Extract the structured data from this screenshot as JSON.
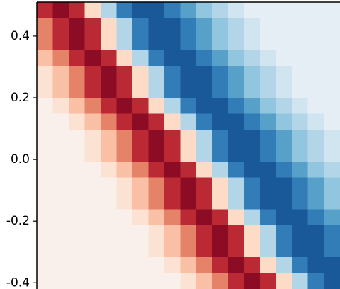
{
  "chart_data": {
    "type": "heatmap",
    "colormap": "RdBu_r",
    "clim": [
      -1,
      1
    ],
    "ylim": [
      -0.42,
      0.51
    ],
    "yticks": [
      0.4,
      0.2,
      {
        "value": 0,
        "label": "0.0"
      },
      -0.2,
      -0.4
    ],
    "z": [
      [
        0.75,
        0.9,
        0.75,
        0.2,
        -0.3,
        -0.7,
        -0.85,
        -0.85,
        -0.7,
        -0.55,
        -0.4,
        -0.3,
        -0.2,
        -0.1,
        -0.1,
        -0.1,
        -0.1,
        -0.1,
        -0.1
      ],
      [
        0.5,
        0.75,
        0.9,
        0.75,
        0.2,
        -0.3,
        -0.7,
        -0.85,
        -0.85,
        -0.7,
        -0.55,
        -0.4,
        -0.3,
        -0.2,
        -0.1,
        -0.1,
        -0.1,
        -0.1,
        -0.1
      ],
      [
        0.5,
        0.75,
        0.9,
        0.75,
        0.2,
        -0.3,
        -0.7,
        -0.85,
        -0.85,
        -0.7,
        -0.55,
        -0.4,
        -0.3,
        -0.2,
        -0.1,
        -0.1,
        -0.1,
        -0.1,
        -0.1
      ],
      [
        0.3,
        0.5,
        0.75,
        0.9,
        0.75,
        0.2,
        -0.3,
        -0.7,
        -0.85,
        -0.85,
        -0.7,
        -0.55,
        -0.4,
        -0.3,
        -0.2,
        -0.1,
        -0.1,
        -0.1,
        -0.1
      ],
      [
        0.15,
        0.3,
        0.5,
        0.75,
        0.9,
        0.75,
        0.2,
        -0.3,
        -0.7,
        -0.85,
        -0.85,
        -0.7,
        -0.55,
        -0.4,
        -0.3,
        -0.2,
        -0.1,
        -0.1,
        -0.1
      ],
      [
        0.15,
        0.3,
        0.5,
        0.75,
        0.9,
        0.75,
        0.2,
        -0.3,
        -0.7,
        -0.85,
        -0.85,
        -0.7,
        -0.55,
        -0.4,
        -0.3,
        -0.2,
        -0.1,
        -0.1,
        -0.1
      ],
      [
        0.05,
        0.15,
        0.3,
        0.5,
        0.75,
        0.9,
        0.75,
        0.2,
        -0.3,
        -0.7,
        -0.85,
        -0.85,
        -0.7,
        -0.55,
        -0.4,
        -0.3,
        -0.2,
        -0.1,
        -0.1
      ],
      [
        0.05,
        0.05,
        0.15,
        0.3,
        0.5,
        0.75,
        0.9,
        0.75,
        0.2,
        -0.3,
        -0.7,
        -0.85,
        -0.85,
        -0.7,
        -0.55,
        -0.4,
        -0.3,
        -0.2,
        -0.1
      ],
      [
        0.05,
        0.05,
        0.05,
        0.15,
        0.3,
        0.5,
        0.75,
        0.9,
        0.75,
        0.2,
        -0.3,
        -0.7,
        -0.85,
        -0.85,
        -0.7,
        -0.55,
        -0.4,
        -0.3,
        -0.2
      ],
      [
        0.05,
        0.05,
        0.05,
        0.15,
        0.3,
        0.5,
        0.75,
        0.9,
        0.75,
        0.2,
        -0.3,
        -0.7,
        -0.85,
        -0.85,
        -0.7,
        -0.55,
        -0.4,
        -0.3,
        -0.2
      ],
      [
        0.05,
        0.05,
        0.05,
        0.05,
        0.15,
        0.3,
        0.5,
        0.75,
        0.9,
        0.75,
        0.2,
        -0.3,
        -0.7,
        -0.85,
        -0.85,
        -0.7,
        -0.55,
        -0.4,
        -0.3
      ],
      [
        0.05,
        0.05,
        0.05,
        0.05,
        0.05,
        0.15,
        0.3,
        0.5,
        0.75,
        0.9,
        0.75,
        0.2,
        -0.3,
        -0.7,
        -0.85,
        -0.85,
        -0.7,
        -0.55,
        -0.4
      ],
      [
        0.05,
        0.05,
        0.05,
        0.05,
        0.05,
        0.15,
        0.3,
        0.5,
        0.75,
        0.9,
        0.75,
        0.2,
        -0.3,
        -0.7,
        -0.85,
        -0.85,
        -0.7,
        -0.55,
        -0.4
      ],
      [
        0.05,
        0.05,
        0.05,
        0.05,
        0.05,
        0.05,
        0.15,
        0.3,
        0.5,
        0.75,
        0.9,
        0.75,
        0.2,
        -0.3,
        -0.7,
        -0.85,
        -0.85,
        -0.7,
        -0.55
      ],
      [
        0.05,
        0.05,
        0.05,
        0.05,
        0.05,
        0.05,
        0.05,
        0.15,
        0.3,
        0.5,
        0.75,
        0.9,
        0.75,
        0.2,
        -0.3,
        -0.7,
        -0.85,
        -0.85,
        -0.7
      ],
      [
        0.05,
        0.05,
        0.05,
        0.05,
        0.05,
        0.05,
        0.05,
        0.15,
        0.3,
        0.5,
        0.75,
        0.9,
        0.75,
        0.2,
        -0.3,
        -0.7,
        -0.85,
        -0.85,
        -0.7
      ],
      [
        0.05,
        0.05,
        0.05,
        0.05,
        0.05,
        0.05,
        0.05,
        0.05,
        0.15,
        0.3,
        0.5,
        0.75,
        0.9,
        0.75,
        0.2,
        -0.3,
        -0.7,
        -0.85,
        -0.85
      ],
      [
        0.05,
        0.05,
        0.05,
        0.05,
        0.05,
        0.05,
        0.05,
        0.05,
        0.05,
        0.15,
        0.3,
        0.5,
        0.75,
        0.9,
        0.75,
        0.2,
        -0.3,
        -0.7,
        -0.85
      ]
    ]
  }
}
